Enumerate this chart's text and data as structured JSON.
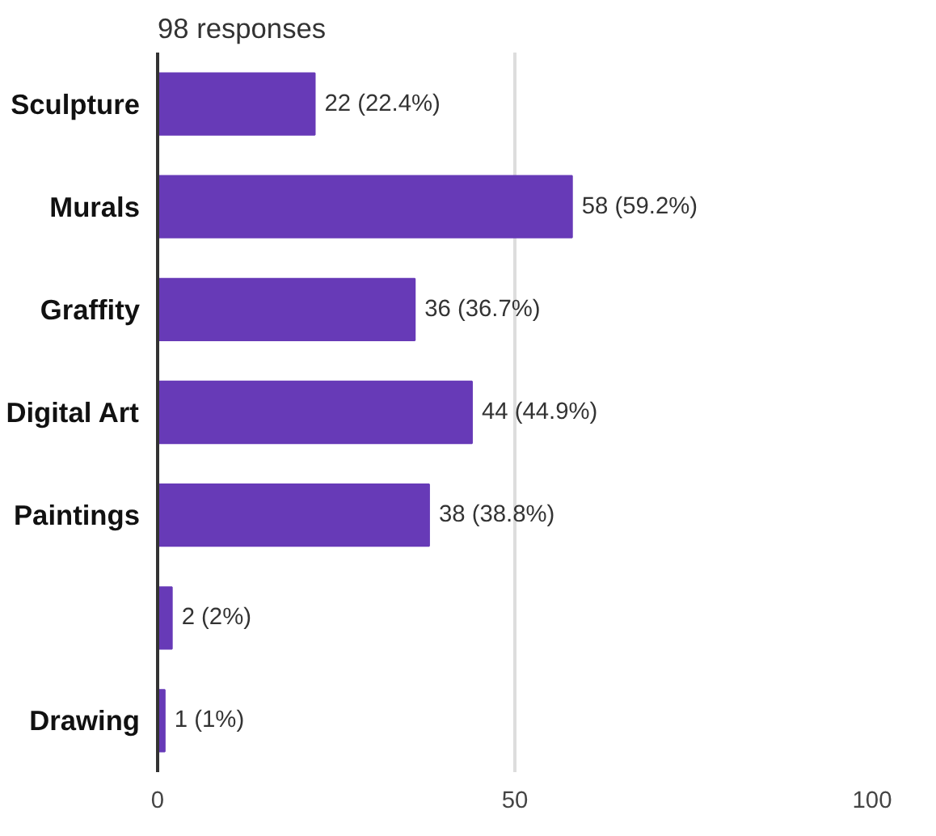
{
  "chart_data": {
    "type": "bar",
    "orientation": "horizontal",
    "title": "98 responses",
    "categories": [
      "Sculpture",
      "Murals",
      "Graffity",
      "Digital Art",
      "Paintings",
      null,
      "Drawing"
    ],
    "values": [
      22,
      58,
      36,
      44,
      38,
      2,
      1
    ],
    "value_labels": [
      "22 (22.4%)",
      "58 (59.2%)",
      "36 (36.7%)",
      "44 (44.9%)",
      "38 (38.8%)",
      "2 (2%)",
      "1 (1%)"
    ],
    "color": "#673ab7",
    "xlim": [
      0,
      100
    ],
    "xticks": [
      0,
      50,
      100
    ],
    "grid": "x"
  }
}
